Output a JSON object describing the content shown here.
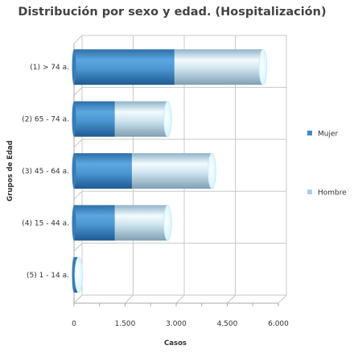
{
  "chart_data": {
    "type": "bar",
    "orientation": "horizontal",
    "stacked": true,
    "style": "3d-cylinder",
    "title": "Distribución por sexo y edad. (Hospitalización)",
    "xlabel": "Casos",
    "ylabel": "Grupos de Edad",
    "categories": [
      "(1) > 74 a.",
      "(2) 65 - 74 a.",
      "(3) 45 - 64 a.",
      "(4) 15 - 44 a.",
      "(5) 1 - 14 a."
    ],
    "series": [
      {
        "name": "Mujer",
        "values": [
          2950,
          1200,
          1700,
          1200,
          100
        ],
        "color": "#3f88c8"
      },
      {
        "name": "Hombre",
        "values": [
          2600,
          1550,
          2350,
          1550,
          40
        ],
        "color": "#a8d0ec"
      }
    ],
    "xlim": [
      0,
      6000
    ],
    "xticks": [
      0,
      1500,
      3000,
      4500,
      6000
    ],
    "xtick_labels": [
      "0",
      "1.500",
      "3.000",
      "4.500",
      "6.000"
    ],
    "grid": true,
    "legend_position": "right"
  }
}
